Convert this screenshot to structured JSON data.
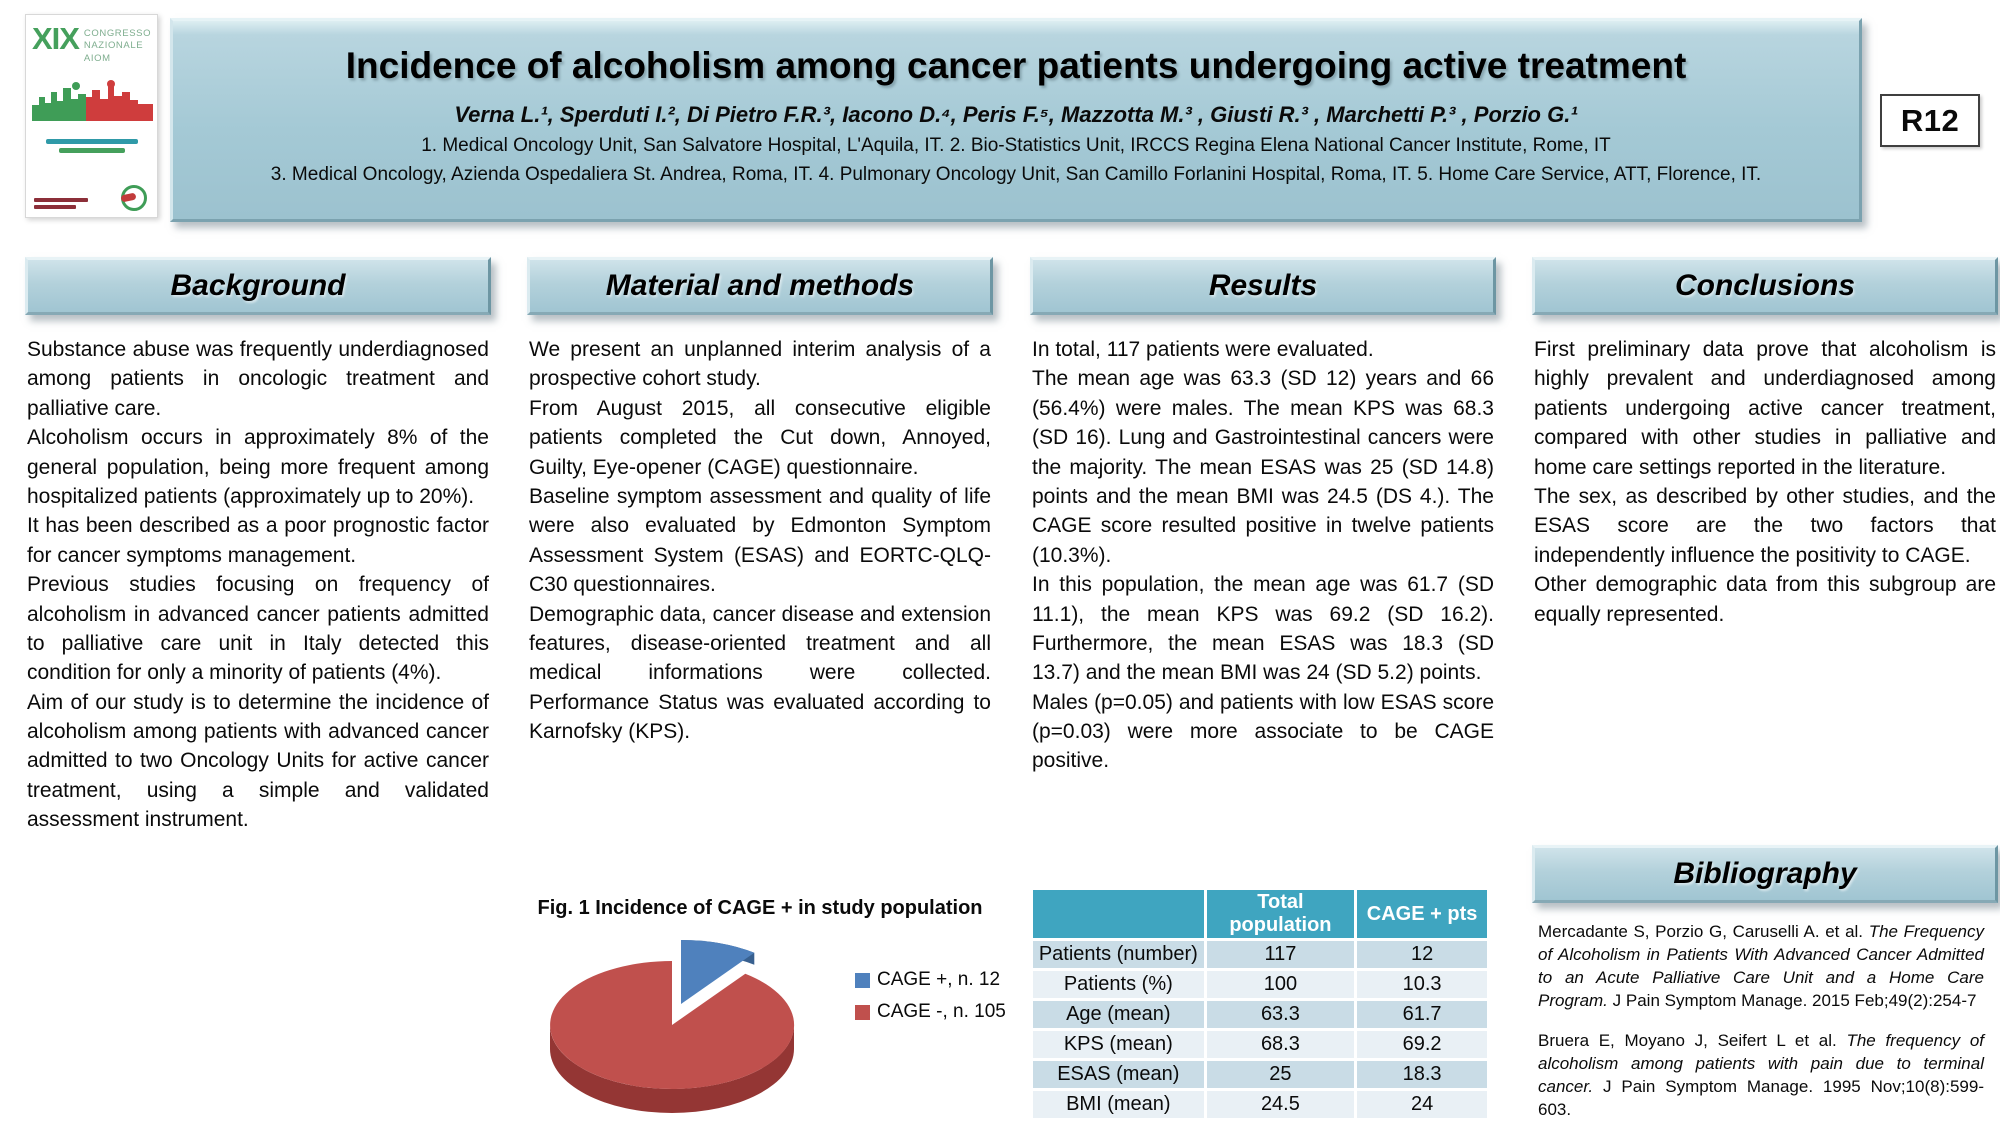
{
  "poster": {
    "logo": {
      "roman": "XIX",
      "line1": "Congresso",
      "line2": "Nazionale",
      "line3": "AIOM"
    },
    "title": "Incidence of alcoholism among cancer patients undergoing active treatment",
    "authors": "Verna L.¹, Sperduti I.², Di Pietro F.R.³, Iacono D.⁴, Peris F.⁵, Mazzotta M.³ , Giusti R.³ , Marchetti P.³ , Porzio G.¹",
    "affiliations": [
      "1. Medical Oncology Unit, San Salvatore Hospital, L'Aquila, IT. 2. Bio-Statistics Unit, IRCCS Regina Elena National Cancer Institute, Rome, IT",
      "3. Medical Oncology, Azienda Ospedaliera St. Andrea, Roma, IT. 4. Pulmonary Oncology Unit, San Camillo Forlanini Hospital, Roma, IT. 5. Home Care Service, ATT, Florence, IT."
    ],
    "badge": "R12"
  },
  "sections": {
    "background": {
      "heading": "Background",
      "paragraphs": [
        "Substance abuse was frequently underdiagnosed among patients in oncologic treatment and palliative care.",
        "Alcoholism occurs in approximately 8% of the general population, being more frequent among hospitalized patients (approximately up to 20%).",
        "It has been described as a poor prognostic factor for cancer symptoms management.",
        "Previous studies focusing on frequency of alcoholism in advanced cancer patients admitted to palliative care unit in Italy detected this condition for only a minority of patients (4%).",
        "Aim of our study is to determine the incidence of alcoholism among patients with advanced cancer admitted to two Oncology Units for active cancer treatment, using a simple and validated assessment instrument."
      ]
    },
    "methods": {
      "heading": "Material and methods",
      "paragraphs": [
        "We present an unplanned interim analysis of a prospective cohort study.",
        "From August 2015, all consecutive eligible patients completed the Cut down, Annoyed, Guilty, Eye-opener (CAGE) questionnaire.",
        "Baseline symptom assessment and quality of life were also evaluated by Edmonton Symptom Assessment System (ESAS) and EORTC-QLQ-C30 questionnaires.",
        "Demographic data, cancer disease and extension features, disease-oriented treatment and all medical informations were collected. Performance Status was evaluated according to Karnofsky (KPS)."
      ]
    },
    "results": {
      "heading": "Results",
      "paragraphs": [
        "In total, 117 patients were evaluated.",
        "The mean age was 63.3 (SD 12) years and 66 (56.4%) were males. The mean KPS was 68.3 (SD 16). Lung and Gastrointestinal cancers were the majority. The mean ESAS was 25 (SD 14.8) points and the mean BMI was 24.5 (DS 4.). The CAGE score resulted positive in twelve patients (10.3%).",
        "In this population, the mean age was 61.7 (SD 11.1), the mean KPS was 69.2 (SD 16.2). Furthermore, the mean ESAS was 18.3 (SD 13.7) and the mean BMI was 24 (SD 5.2) points.",
        "Males (p=0.05) and patients with low ESAS score (p=0.03) were more associate to be CAGE positive."
      ]
    },
    "conclusions": {
      "heading": "Conclusions",
      "paragraphs": [
        "First preliminary data prove that alcoholism is highly prevalent and underdiagnosed among patients undergoing active cancer treatment, compared with other studies in palliative and home care settings reported in the literature.",
        "The sex, as described by other studies, and the ESAS score are the two factors that independently influence the positivity to CAGE.",
        "Other demographic data from this subgroup are equally represented."
      ]
    },
    "bibliography": {
      "heading": "Bibliography",
      "entries": [
        {
          "authors": "Mercadante S, Porzio G, Caruselli A. et al. ",
          "title": "The Frequency of Alcoholism in Patients With Advanced Cancer Admitted to an Acute Palliative Care Unit and a Home Care Program.",
          "source": " J Pain Symptom Manage. 2015 Feb;49(2):254-7"
        },
        {
          "authors": "Bruera E, Moyano J, Seifert L et al. ",
          "title": "The frequency of alcoholism among patients with pain due to terminal cancer.",
          "source": " J Pain Symptom Manage. 1995 Nov;10(8):599-603."
        }
      ]
    }
  },
  "figure": {
    "caption": "Fig. 1 Incidence of CAGE + in study population",
    "legend": [
      {
        "label": "CAGE +, n. 12",
        "color": "#4f81bd"
      },
      {
        "label": "CAGE -, n. 105",
        "color": "#c0504d"
      }
    ]
  },
  "chart_data": {
    "type": "pie",
    "title": "Fig. 1 Incidence of CAGE + in study population",
    "labels": [
      "CAGE +",
      "CAGE -"
    ],
    "values": [
      12,
      105
    ],
    "percentages": [
      10.3,
      89.7
    ],
    "colors": [
      "#4f81bd",
      "#c0504d"
    ],
    "colors_dark": [
      "#38608f",
      "#943634"
    ],
    "legend_position": "right",
    "style": "3d-exploded-first-slice"
  },
  "table": {
    "headers": [
      "",
      "Total population",
      "CAGE + pts"
    ],
    "rows": [
      {
        "label": "Patients (number)",
        "total": "117",
        "cage": "12"
      },
      {
        "label": "Patients (%)",
        "total": "100",
        "cage": "10.3"
      },
      {
        "label": "Age (mean)",
        "total": "63.3",
        "cage": "61.7"
      },
      {
        "label": "KPS (mean)",
        "total": "68.3",
        "cage": "69.2"
      },
      {
        "label": "ESAS (mean)",
        "total": "25",
        "cage": "18.3"
      },
      {
        "label": "BMI (mean)",
        "total": "24.5",
        "cage": "24"
      }
    ]
  },
  "colors": {
    "banner_blue": "#a4c9d5",
    "section_header_blue": "#b3d1db",
    "table_header_teal": "#3fa5c0",
    "table_row_dark": "#c9dce6",
    "table_row_light": "#e9f0f5",
    "logo_green": "#45a05c",
    "logo_red": "#c23b3b"
  }
}
